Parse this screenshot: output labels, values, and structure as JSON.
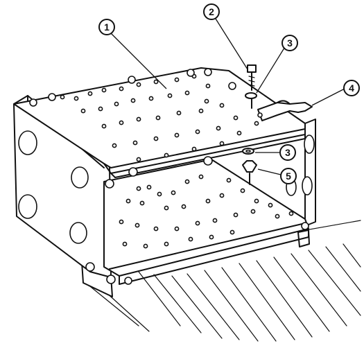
{
  "callouts": [
    {
      "id": "callout-1",
      "label": "1"
    },
    {
      "id": "callout-2",
      "label": "2"
    },
    {
      "id": "callout-3-upper",
      "label": "3"
    },
    {
      "id": "callout-4",
      "label": "4"
    },
    {
      "id": "callout-3-lower",
      "label": "3"
    },
    {
      "id": "callout-5",
      "label": "5"
    }
  ],
  "colors": {
    "ink": "#111111",
    "paper": "#ffffff"
  }
}
